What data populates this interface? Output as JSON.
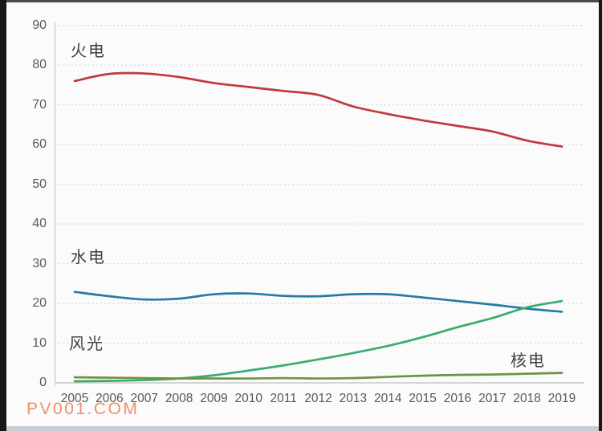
{
  "watermark": {
    "text": "PV001.COM",
    "color": "#ee8660"
  },
  "chart_data": {
    "type": "line",
    "title": "",
    "xlabel": "",
    "ylabel": "",
    "categories": [
      "2005",
      "2006",
      "2007",
      "2008",
      "2009",
      "2010",
      "2011",
      "2012",
      "2013",
      "2014",
      "2015",
      "2016",
      "2017",
      "2018",
      "2019"
    ],
    "yticks": [
      0,
      10,
      20,
      30,
      40,
      50,
      60,
      70,
      80,
      90
    ],
    "ylim": [
      0,
      90
    ],
    "grid": "horizontal-dotted",
    "legend_position": "inline-labels-on-plot",
    "series": [
      {
        "name": "火电",
        "color": "#c0393b",
        "values": [
          76.0,
          77.8,
          77.9,
          77.0,
          75.5,
          74.5,
          73.5,
          72.5,
          69.6,
          67.7,
          66.1,
          64.7,
          63.3,
          61.0,
          59.5
        ]
      },
      {
        "name": "水电",
        "color": "#2779a7",
        "values": [
          22.9,
          21.8,
          21.0,
          21.2,
          22.3,
          22.5,
          21.9,
          21.8,
          22.3,
          22.3,
          21.5,
          20.6,
          19.7,
          18.7,
          17.9
        ]
      },
      {
        "name": "风光",
        "color": "#3aab6f",
        "values": [
          0.4,
          0.5,
          0.7,
          1.1,
          1.9,
          3.1,
          4.4,
          5.9,
          7.5,
          9.3,
          11.5,
          14.0,
          16.3,
          19.0,
          20.6
        ]
      },
      {
        "name": "核电",
        "color": "#6f9240",
        "values": [
          1.4,
          1.3,
          1.2,
          1.1,
          1.1,
          1.1,
          1.2,
          1.1,
          1.2,
          1.5,
          1.8,
          2.0,
          2.1,
          2.3,
          2.5
        ]
      }
    ]
  }
}
